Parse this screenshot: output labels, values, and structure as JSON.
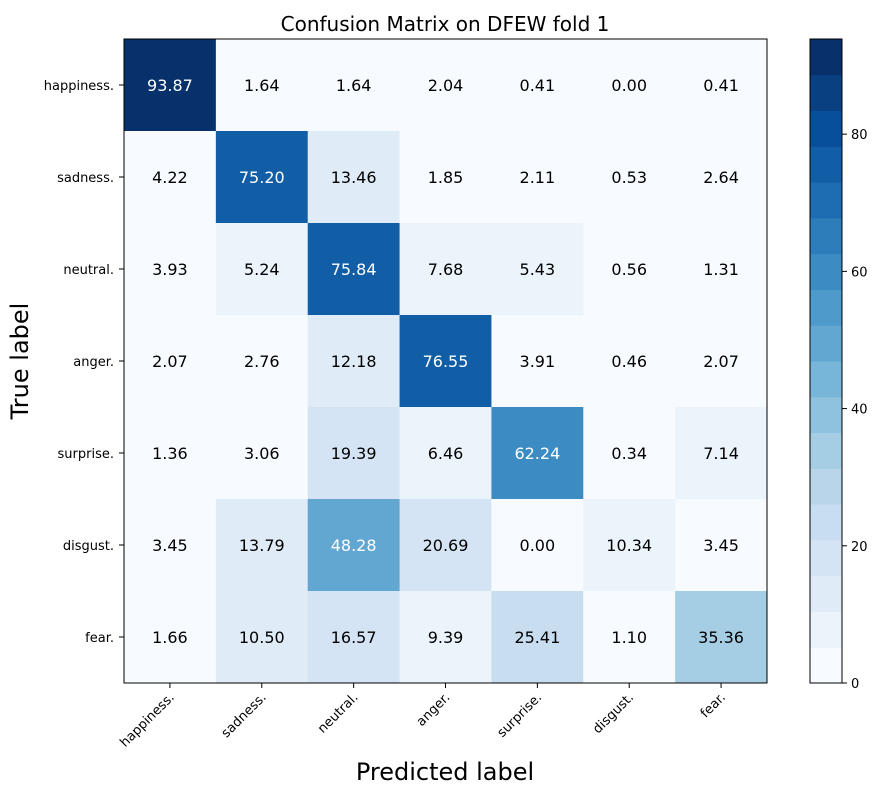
{
  "chart_data": {
    "type": "heatmap",
    "title": "Confusion Matrix on DFEW fold 1",
    "xlabel": "Predicted label",
    "ylabel": "True label",
    "x_categories": [
      "happiness.",
      "sadness.",
      "neutral.",
      "anger.",
      "surprise.",
      "disgust.",
      "fear."
    ],
    "y_categories": [
      "happiness.",
      "sadness.",
      "neutral.",
      "anger.",
      "surprise.",
      "disgust.",
      "fear."
    ],
    "values": [
      [
        93.87,
        1.64,
        1.64,
        2.04,
        0.41,
        0.0,
        0.41
      ],
      [
        4.22,
        75.2,
        13.46,
        1.85,
        2.11,
        0.53,
        2.64
      ],
      [
        3.93,
        5.24,
        75.84,
        7.68,
        5.43,
        0.56,
        1.31
      ],
      [
        2.07,
        2.76,
        12.18,
        76.55,
        3.91,
        0.46,
        2.07
      ],
      [
        1.36,
        3.06,
        19.39,
        6.46,
        62.24,
        0.34,
        7.14
      ],
      [
        3.45,
        13.79,
        48.28,
        20.69,
        0.0,
        10.34,
        3.45
      ],
      [
        1.66,
        10.5,
        16.57,
        9.39,
        25.41,
        1.1,
        35.36
      ]
    ],
    "colormap": "Blues",
    "colorbar": {
      "range": [
        0,
        93.87
      ],
      "ticks": [
        0,
        20,
        40,
        60,
        80
      ],
      "levels": 18
    },
    "text_color_threshold": 46.935,
    "grid": false
  }
}
